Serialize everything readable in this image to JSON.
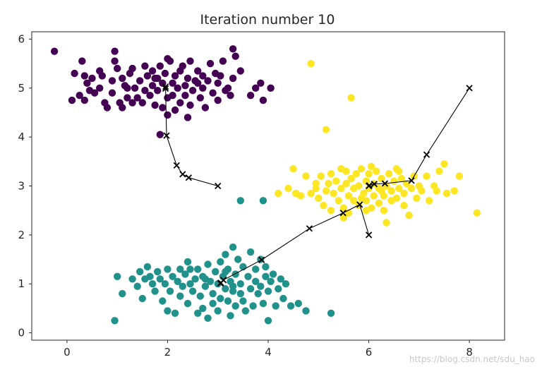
{
  "chart_data": {
    "type": "scatter",
    "title": "Iteration number 10",
    "xlabel": "",
    "ylabel": "",
    "xlim": [
      -0.7,
      8.7
    ],
    "ylim": [
      -0.15,
      6.15
    ],
    "xticks": [
      0,
      2,
      4,
      6,
      8
    ],
    "yticks": [
      0,
      1,
      2,
      3,
      4,
      5,
      6
    ],
    "grid": false,
    "legend": "none",
    "colors": {
      "cluster_0": "#440154",
      "cluster_1": "#21918c",
      "cluster_2": "#fde725",
      "centroid_path": "#000000"
    },
    "series": [
      {
        "cluster": 0,
        "points": [
          [
            -0.25,
            5.75
          ],
          [
            0.1,
            4.75
          ],
          [
            0.15,
            5.3
          ],
          [
            0.25,
            4.85
          ],
          [
            0.3,
            5.55
          ],
          [
            0.35,
            4.75
          ],
          [
            0.35,
            5.25
          ],
          [
            0.4,
            5.1
          ],
          [
            0.45,
            4.95
          ],
          [
            0.5,
            5.2
          ],
          [
            0.55,
            4.9
          ],
          [
            0.65,
            5.0
          ],
          [
            0.65,
            5.35
          ],
          [
            0.7,
            5.25
          ],
          [
            0.75,
            4.7
          ],
          [
            0.8,
            4.6
          ],
          [
            0.9,
            5.15
          ],
          [
            0.95,
            5.55
          ],
          [
            0.95,
            5.75
          ],
          [
            1.0,
            5.4
          ],
          [
            1.05,
            4.7
          ],
          [
            1.1,
            4.6
          ],
          [
            1.1,
            5.2
          ],
          [
            1.15,
            5.05
          ],
          [
            1.2,
            4.8
          ],
          [
            1.25,
            5.3
          ],
          [
            1.3,
            5.4
          ],
          [
            1.3,
            4.7
          ],
          [
            1.35,
            5.0
          ],
          [
            1.4,
            4.8
          ],
          [
            1.45,
            5.15
          ],
          [
            1.5,
            4.7
          ],
          [
            1.55,
            4.95
          ],
          [
            1.55,
            5.45
          ],
          [
            1.6,
            5.25
          ],
          [
            1.65,
            4.85
          ],
          [
            1.7,
            5.05
          ],
          [
            1.7,
            5.35
          ],
          [
            1.75,
            4.65
          ],
          [
            1.75,
            5.2
          ],
          [
            1.8,
            4.95
          ],
          [
            1.85,
            4.05
          ],
          [
            1.85,
            5.45
          ],
          [
            1.9,
            4.6
          ],
          [
            1.9,
            5.1
          ],
          [
            1.95,
            5.3
          ],
          [
            2.0,
            4.8
          ],
          [
            2.0,
            4.45
          ],
          [
            2.05,
            5.55
          ],
          [
            2.1,
            5.1
          ],
          [
            2.1,
            4.85
          ],
          [
            2.15,
            5.25
          ],
          [
            2.15,
            4.55
          ],
          [
            2.2,
            5.0
          ],
          [
            2.25,
            5.35
          ],
          [
            2.25,
            4.7
          ],
          [
            2.3,
            5.45
          ],
          [
            2.35,
            5.05
          ],
          [
            2.35,
            4.85
          ],
          [
            2.4,
            5.2
          ],
          [
            2.45,
            4.65
          ],
          [
            2.45,
            5.55
          ],
          [
            2.5,
            4.95
          ],
          [
            2.55,
            5.15
          ],
          [
            2.6,
            5.35
          ],
          [
            2.65,
            4.8
          ],
          [
            2.7,
            5.25
          ],
          [
            2.7,
            5.0
          ],
          [
            2.75,
            4.6
          ],
          [
            2.8,
            5.15
          ],
          [
            2.85,
            5.5
          ],
          [
            2.9,
            4.9
          ],
          [
            2.95,
            5.3
          ],
          [
            3.0,
            5.1
          ],
          [
            3.0,
            4.75
          ],
          [
            3.05,
            5.25
          ],
          [
            3.1,
            5.55
          ],
          [
            3.15,
            4.95
          ],
          [
            3.2,
            5.0
          ],
          [
            3.25,
            4.85
          ],
          [
            3.3,
            5.2
          ],
          [
            3.3,
            5.8
          ],
          [
            3.35,
            5.65
          ],
          [
            3.45,
            5.35
          ],
          [
            3.65,
            4.85
          ],
          [
            3.75,
            5.0
          ],
          [
            3.85,
            5.1
          ],
          [
            3.9,
            4.75
          ],
          [
            4.05,
            5.0
          ],
          [
            1.8,
            5.2
          ],
          [
            2.4,
            4.4
          ],
          [
            2.0,
            5.6
          ],
          [
            1.2,
            5.0
          ],
          [
            0.9,
            4.9
          ],
          [
            2.6,
            5.1
          ]
        ]
      },
      {
        "cluster": 1,
        "points": [
          [
            0.95,
            0.25
          ],
          [
            1.0,
            1.15
          ],
          [
            1.1,
            0.8
          ],
          [
            1.3,
            1.1
          ],
          [
            1.4,
            0.95
          ],
          [
            1.45,
            1.25
          ],
          [
            1.5,
            0.7
          ],
          [
            1.55,
            1.1
          ],
          [
            1.6,
            1.35
          ],
          [
            1.65,
            1.15
          ],
          [
            1.7,
            1.0
          ],
          [
            1.75,
            0.85
          ],
          [
            1.8,
            1.25
          ],
          [
            1.85,
            1.1
          ],
          [
            1.9,
            0.65
          ],
          [
            1.95,
            1.0
          ],
          [
            2.0,
            1.3
          ],
          [
            2.0,
            0.45
          ],
          [
            2.05,
            0.85
          ],
          [
            2.1,
            1.15
          ],
          [
            2.15,
            0.4
          ],
          [
            2.2,
            1.05
          ],
          [
            2.25,
            0.75
          ],
          [
            2.25,
            1.3
          ],
          [
            2.3,
            0.95
          ],
          [
            2.35,
            1.2
          ],
          [
            2.4,
            0.6
          ],
          [
            2.4,
            1.45
          ],
          [
            2.45,
            1.0
          ],
          [
            2.5,
            0.85
          ],
          [
            2.55,
            1.1
          ],
          [
            2.6,
            0.4
          ],
          [
            2.6,
            1.3
          ],
          [
            2.65,
            0.75
          ],
          [
            2.7,
            0.5
          ],
          [
            2.7,
            1.15
          ],
          [
            2.75,
            0.95
          ],
          [
            2.8,
            0.3
          ],
          [
            2.8,
            1.4
          ],
          [
            2.85,
            1.05
          ],
          [
            2.9,
            0.8
          ],
          [
            2.9,
            0.6
          ],
          [
            2.95,
            1.25
          ],
          [
            3.0,
            1.0
          ],
          [
            3.0,
            0.45
          ],
          [
            3.05,
            1.45
          ],
          [
            3.05,
            0.7
          ],
          [
            3.1,
            1.15
          ],
          [
            3.15,
            0.9
          ],
          [
            3.15,
            1.6
          ],
          [
            3.2,
            0.65
          ],
          [
            3.2,
            1.3
          ],
          [
            3.25,
            1.05
          ],
          [
            3.25,
            0.35
          ],
          [
            3.3,
            1.75
          ],
          [
            3.3,
            0.85
          ],
          [
            3.35,
            1.2
          ],
          [
            3.35,
            0.55
          ],
          [
            3.4,
            1.5
          ],
          [
            3.45,
            1.0
          ],
          [
            3.45,
            0.8
          ],
          [
            3.5,
            0.65
          ],
          [
            3.5,
            1.35
          ],
          [
            3.55,
            0.45
          ],
          [
            3.6,
            1.15
          ],
          [
            3.65,
            0.9
          ],
          [
            3.65,
            1.65
          ],
          [
            3.7,
            0.55
          ],
          [
            3.75,
            1.3
          ],
          [
            3.75,
            1.05
          ],
          [
            3.8,
            0.8
          ],
          [
            3.85,
            1.5
          ],
          [
            3.85,
            0.95
          ],
          [
            3.9,
            0.6
          ],
          [
            3.95,
            1.15
          ],
          [
            3.95,
            1.35
          ],
          [
            4.0,
            0.85
          ],
          [
            4.05,
            1.05
          ],
          [
            4.1,
            1.2
          ],
          [
            4.15,
            0.55
          ],
          [
            4.2,
            0.9
          ],
          [
            4.25,
            1.1
          ],
          [
            4.3,
            0.7
          ],
          [
            4.35,
            1.0
          ],
          [
            4.45,
            0.55
          ],
          [
            4.6,
            0.6
          ],
          [
            4.75,
            0.45
          ],
          [
            5.25,
            0.4
          ],
          [
            3.9,
            2.7
          ],
          [
            3.45,
            2.7
          ],
          [
            4.0,
            0.25
          ],
          [
            2.45,
            1.3
          ],
          [
            3.15,
            1.25
          ],
          [
            2.75,
            1.1
          ],
          [
            3.3,
            0.95
          ]
        ]
      },
      {
        "cluster": 2,
        "points": [
          [
            4.2,
            2.85
          ],
          [
            4.4,
            2.95
          ],
          [
            4.5,
            3.35
          ],
          [
            4.55,
            2.85
          ],
          [
            4.65,
            2.8
          ],
          [
            4.75,
            3.2
          ],
          [
            4.85,
            2.85
          ],
          [
            4.85,
            5.5
          ],
          [
            4.95,
            3.05
          ],
          [
            5.0,
            2.75
          ],
          [
            5.05,
            3.2
          ],
          [
            5.1,
            2.6
          ],
          [
            5.15,
            2.9
          ],
          [
            5.15,
            4.15
          ],
          [
            5.2,
            3.05
          ],
          [
            5.25,
            2.5
          ],
          [
            5.25,
            3.25
          ],
          [
            5.3,
            2.85
          ],
          [
            5.35,
            3.1
          ],
          [
            5.4,
            2.7
          ],
          [
            5.45,
            2.95
          ],
          [
            5.45,
            3.35
          ],
          [
            5.5,
            2.55
          ],
          [
            5.55,
            3.05
          ],
          [
            5.55,
            3.3
          ],
          [
            5.6,
            2.8
          ],
          [
            5.6,
            2.45
          ],
          [
            5.65,
            4.8
          ],
          [
            5.65,
            3.15
          ],
          [
            5.7,
            2.95
          ],
          [
            5.7,
            2.7
          ],
          [
            5.75,
            3.25
          ],
          [
            5.8,
            3.0
          ],
          [
            5.8,
            2.6
          ],
          [
            5.85,
            3.35
          ],
          [
            5.9,
            2.85
          ],
          [
            5.95,
            3.1
          ],
          [
            5.95,
            2.7
          ],
          [
            6.0,
            2.95
          ],
          [
            6.0,
            3.25
          ],
          [
            6.05,
            2.55
          ],
          [
            6.1,
            2.8
          ],
          [
            6.1,
            3.05
          ],
          [
            6.15,
            3.3
          ],
          [
            6.2,
            2.65
          ],
          [
            6.2,
            2.95
          ],
          [
            6.25,
            3.15
          ],
          [
            6.3,
            2.5
          ],
          [
            6.3,
            2.8
          ],
          [
            6.35,
            3.0
          ],
          [
            6.4,
            3.25
          ],
          [
            6.45,
            2.7
          ],
          [
            6.45,
            2.9
          ],
          [
            6.5,
            3.1
          ],
          [
            6.55,
            2.75
          ],
          [
            6.55,
            3.35
          ],
          [
            6.6,
            2.95
          ],
          [
            6.65,
            3.15
          ],
          [
            6.7,
            2.6
          ],
          [
            6.7,
            2.85
          ],
          [
            6.75,
            3.05
          ],
          [
            6.8,
            2.4
          ],
          [
            6.85,
            2.95
          ],
          [
            6.9,
            3.2
          ],
          [
            6.95,
            2.75
          ],
          [
            7.0,
            3.0
          ],
          [
            7.05,
            2.9
          ],
          [
            7.15,
            3.2
          ],
          [
            7.2,
            2.7
          ],
          [
            7.3,
            3.0
          ],
          [
            7.35,
            2.9
          ],
          [
            7.4,
            3.3
          ],
          [
            7.5,
            3.45
          ],
          [
            7.55,
            2.85
          ],
          [
            7.7,
            2.9
          ],
          [
            7.8,
            3.2
          ],
          [
            8.15,
            2.45
          ],
          [
            6.35,
            2.25
          ],
          [
            5.95,
            2.5
          ],
          [
            6.05,
            3.4
          ],
          [
            5.5,
            2.35
          ],
          [
            4.95,
            2.95
          ],
          [
            6.6,
            3.3
          ],
          [
            5.85,
            2.75
          ],
          [
            6.25,
            2.9
          ]
        ]
      }
    ],
    "centroid_paths": [
      [
        [
          3.0,
          3.0
        ],
        [
          2.42,
          3.17
        ],
        [
          2.3,
          3.24
        ],
        [
          2.18,
          3.42
        ],
        [
          1.98,
          4.03
        ],
        [
          1.96,
          4.99
        ],
        [
          1.96,
          5.03
        ]
      ],
      [
        [
          6.0,
          2.0
        ],
        [
          5.82,
          2.62
        ],
        [
          5.49,
          2.45
        ],
        [
          4.82,
          2.13
        ],
        [
          3.87,
          1.49
        ],
        [
          3.11,
          1.08
        ],
        [
          3.06,
          1.02
        ],
        [
          3.05,
          1.01
        ]
      ],
      [
        [
          8.0,
          5.0
        ],
        [
          7.15,
          3.64
        ],
        [
          6.85,
          3.11
        ],
        [
          6.32,
          3.05
        ],
        [
          6.11,
          3.04
        ],
        [
          6.01,
          3.01
        ],
        [
          6.0,
          3.0
        ]
      ]
    ]
  },
  "watermark": "https://blog.csdn.net/sdu_hao"
}
